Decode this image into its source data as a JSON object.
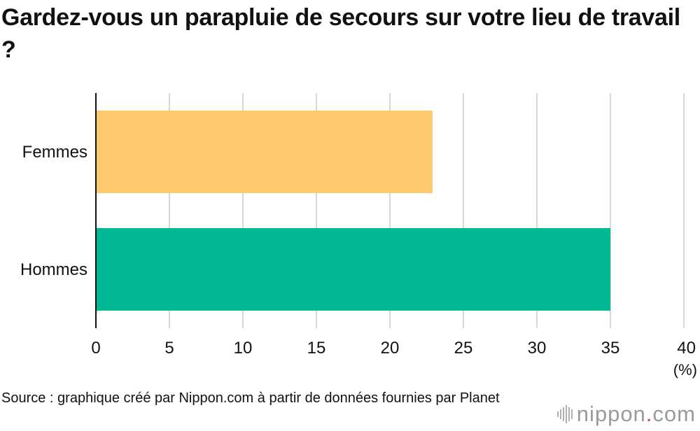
{
  "chart_data": {
    "type": "bar",
    "orientation": "horizontal",
    "title": "Gardez-vous un parapluie de secours sur votre lieu de travail ?",
    "categories": [
      "Femmes",
      "Hommes"
    ],
    "values": [
      22.9,
      35.0
    ],
    "colors": [
      "#fcc96f",
      "#00b894"
    ],
    "xlim": [
      0,
      40
    ],
    "xticks": [
      0,
      5,
      10,
      15,
      20,
      25,
      30,
      35,
      40
    ],
    "xlabel": "(%)",
    "ylabel": "",
    "grid": true,
    "grid_color": "#cccccc",
    "axis_color": "#111111"
  },
  "footer": {
    "source": "Source : graphique créé par Nippon.com à partir de données fournies par Planet",
    "logo_word": "nippon",
    "logo_dot": ".",
    "logo_suffix": "com"
  }
}
